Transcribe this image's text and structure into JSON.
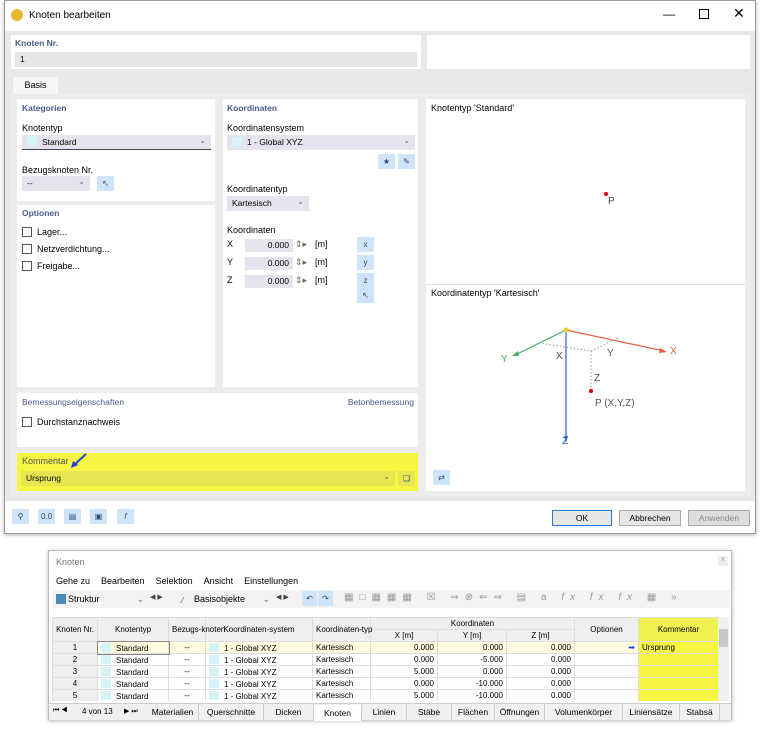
{
  "dialog": {
    "title": "Knoten bearbeiten",
    "node_no_label": "Knoten Nr.",
    "node_no": "1",
    "tab": "Basis",
    "categories": {
      "header": "Kategorien",
      "node_type_label": "Knotentyp",
      "node_type": "Standard",
      "ref_node_label": "Bezugsknoten Nr.",
      "ref_node": "--"
    },
    "options": {
      "header": "Optionen",
      "items": [
        {
          "label": "Lager...",
          "checked": false
        },
        {
          "label": "Netzverdichtung...",
          "checked": false
        },
        {
          "label": "Freigabe...",
          "checked": false
        }
      ]
    },
    "coordinates": {
      "header": "Koordinaten",
      "system_label": "Koordinatensystem",
      "system": "1 - Global XYZ",
      "type_label": "Koordinatentyp",
      "type": "Kartesisch",
      "coords_label": "Koordinaten",
      "rows": [
        {
          "axis": "X",
          "value": "0.000",
          "unit": "[m]"
        },
        {
          "axis": "Y",
          "value": "0.000",
          "unit": "[m]"
        },
        {
          "axis": "Z",
          "value": "0.000",
          "unit": "[m]"
        }
      ]
    },
    "design": {
      "header": "Bemessungseigenschaften",
      "addon": "Betonbemessung",
      "item": "Durchstanznachweis"
    },
    "comment": {
      "label": "Kommentar",
      "value": "Ursprung",
      "highlight": "#f5f542"
    },
    "preview": {
      "node_type_title": "Knotentyp 'Standard'",
      "point_label": "P",
      "coord_type_title": "Koordinatentyp 'Kartesisch'",
      "axis_x": "X",
      "axis_y": "Y",
      "axis_z": "Z",
      "point_xyz": "P (X,Y,Z)"
    },
    "buttons": {
      "ok": "OK",
      "cancel": "Abbrechen",
      "apply": "Anwenden"
    }
  },
  "table_window": {
    "title": "Knoten",
    "menu": [
      "Gehe zu",
      "Bearbeiten",
      "Selektion",
      "Ansicht",
      "Einstellungen"
    ],
    "toolbar": {
      "structure": "Struktur",
      "objects": "Basisobjekte"
    },
    "columns": {
      "nr": "Knoten Nr.",
      "type": "Knotentyp",
      "ref": "Bezugs-knoten",
      "system": "Koordinaten-system",
      "ctype": "Koordinaten-typ",
      "coords": "Koordinaten",
      "x": "X [m]",
      "y": "Y [m]",
      "z": "Z [m]",
      "options": "Optionen",
      "comment": "Kommentar"
    },
    "rows": [
      {
        "nr": "1",
        "type": "Standard",
        "ref": "--",
        "system": "1 - Global XYZ",
        "ctype": "Kartesisch",
        "x": "0.000",
        "y": "0.000",
        "z": "0.000",
        "comment": "Ursprung"
      },
      {
        "nr": "2",
        "type": "Standard",
        "ref": "--",
        "system": "1 - Global XYZ",
        "ctype": "Kartesisch",
        "x": "0.000",
        "y": "-5.000",
        "z": "0.000",
        "comment": ""
      },
      {
        "nr": "3",
        "type": "Standard",
        "ref": "--",
        "system": "1 - Global XYZ",
        "ctype": "Kartesisch",
        "x": "5.000",
        "y": "0.000",
        "z": "0.000",
        "comment": ""
      },
      {
        "nr": "4",
        "type": "Standard",
        "ref": "--",
        "system": "1 - Global XYZ",
        "ctype": "Kartesisch",
        "x": "0.000",
        "y": "-10.000",
        "z": "0.000",
        "comment": ""
      },
      {
        "nr": "5",
        "type": "Standard",
        "ref": "--",
        "system": "1 - Global XYZ",
        "ctype": "Kartesisch",
        "x": "5.000",
        "y": "-10.000",
        "z": "0.000",
        "comment": ""
      }
    ],
    "pager": "4 von 13",
    "tabs": [
      "Materialien",
      "Querschnitte",
      "Dicken",
      "Knoten",
      "Linien",
      "Stäbe",
      "Flächen",
      "Öffnungen",
      "Volumenkörper",
      "Liniensätze",
      "Stabsä"
    ],
    "active_tab": "Knoten"
  }
}
